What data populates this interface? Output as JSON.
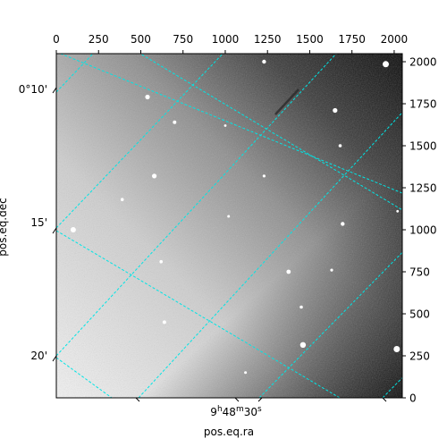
{
  "chart_data": {
    "type": "heatmap",
    "title": "",
    "image_size": [
      2048,
      2048
    ],
    "colormap": "gray",
    "pixel_axes": {
      "x_ticks": [
        0,
        250,
        500,
        750,
        1000,
        1250,
        1500,
        1750,
        2000
      ],
      "x_tick_labels": [
        "0",
        "250",
        "500",
        "750",
        "1000",
        "1250",
        "1500",
        "1750",
        "2000"
      ],
      "y_ticks": [
        0,
        250,
        500,
        750,
        1000,
        1250,
        1500,
        1750,
        2000
      ],
      "y_tick_labels": [
        "0",
        "250",
        "500",
        "750",
        "1000",
        "1250",
        "1500",
        "1750",
        "2000"
      ]
    },
    "world_axes": {
      "xlabel": "pos.eq.ra",
      "ylabel": "pos.eq.dec",
      "ra_tick_label": "9h48m30s",
      "ra_tick_label_parts": [
        "9",
        "h",
        "48",
        "m",
        "30",
        "s"
      ],
      "dec_tick_labels": [
        "0°10'",
        "15'",
        "20'"
      ]
    },
    "grid": true,
    "grid_color": "#00e5e5",
    "stars": [
      {
        "x": 1950,
        "y": 1985,
        "r": 3.5
      },
      {
        "x": 1230,
        "y": 2000,
        "r": 2.2
      },
      {
        "x": 1650,
        "y": 1710,
        "r": 2.6
      },
      {
        "x": 540,
        "y": 1790,
        "r": 2.6
      },
      {
        "x": 700,
        "y": 1640,
        "r": 2.0
      },
      {
        "x": 1680,
        "y": 1500,
        "r": 1.8
      },
      {
        "x": 580,
        "y": 1320,
        "r": 2.6
      },
      {
        "x": 1230,
        "y": 1320,
        "r": 1.6
      },
      {
        "x": 390,
        "y": 1180,
        "r": 1.8
      },
      {
        "x": 1695,
        "y": 1035,
        "r": 2.2
      },
      {
        "x": 1020,
        "y": 1080,
        "r": 1.5
      },
      {
        "x": 100,
        "y": 1000,
        "r": 3.0
      },
      {
        "x": 620,
        "y": 810,
        "r": 1.8
      },
      {
        "x": 1375,
        "y": 750,
        "r": 2.4
      },
      {
        "x": 1630,
        "y": 760,
        "r": 1.6
      },
      {
        "x": 1450,
        "y": 540,
        "r": 1.8
      },
      {
        "x": 640,
        "y": 450,
        "r": 2.0
      },
      {
        "x": 1460,
        "y": 315,
        "r": 3.2
      },
      {
        "x": 2015,
        "y": 290,
        "r": 3.5
      },
      {
        "x": 1120,
        "y": 150,
        "r": 1.5
      },
      {
        "x": 2020,
        "y": 1110,
        "r": 1.4
      },
      {
        "x": 1000,
        "y": 1620,
        "r": 1.4
      }
    ]
  }
}
